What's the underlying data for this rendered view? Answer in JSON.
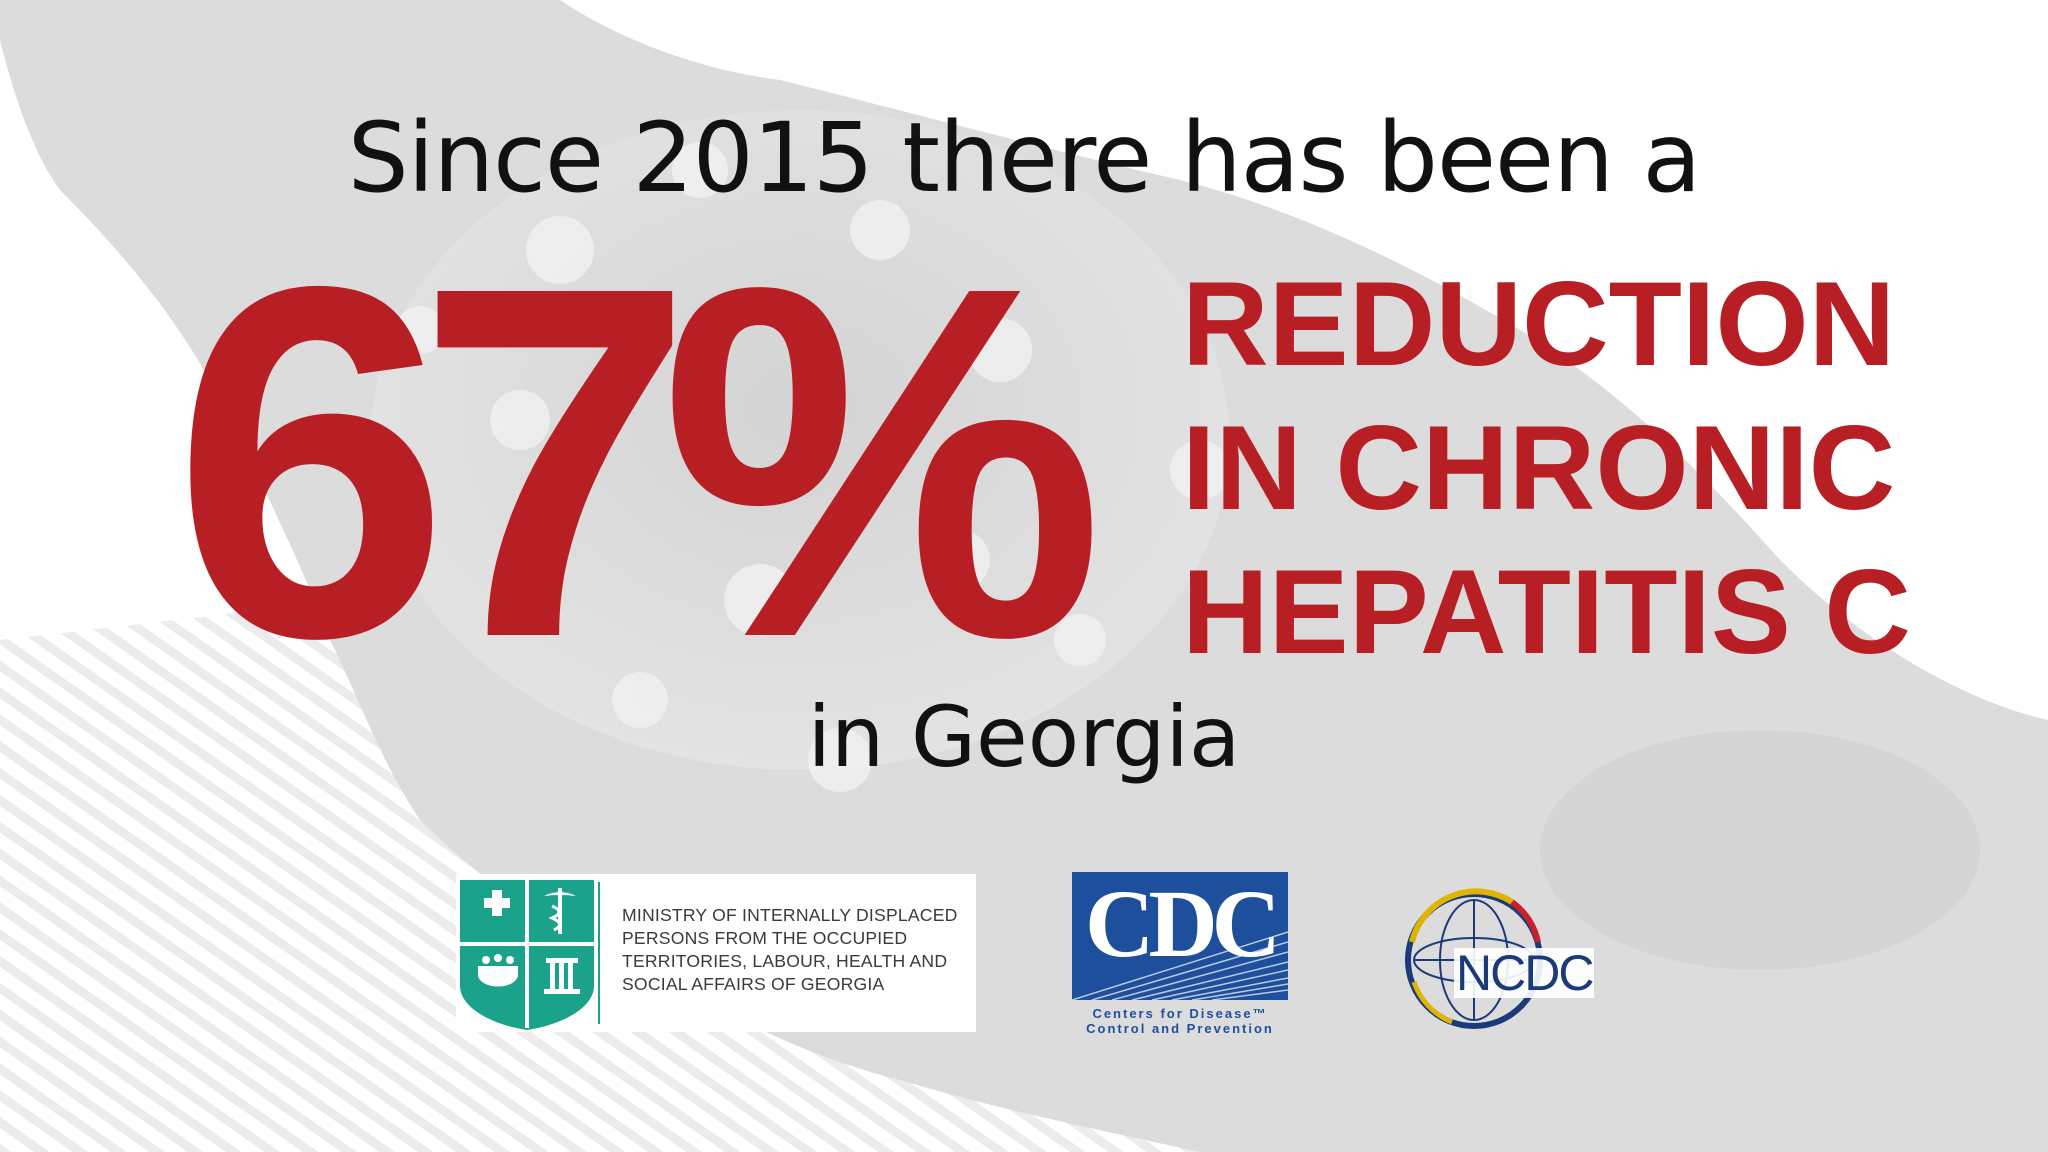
{
  "headline": "Since 2015 there has been a",
  "statistic": {
    "value": "67%",
    "description_lines": [
      "REDUCTION",
      "IN CHRONIC",
      "HEPATITIS C"
    ]
  },
  "location_line": "in Georgia",
  "logos": {
    "ministry": {
      "text_lines": [
        "MINISTRY OF INTERNALLY DISPLACED",
        "PERSONS FROM THE OCCUPIED",
        "TERRITORIES, LABOUR, HEALTH AND",
        "SOCIAL AFFAIRS OF GEORGIA"
      ]
    },
    "cdc": {
      "letters": "CDC",
      "caption_lines": [
        "Centers for Disease™",
        "Control and Prevention"
      ]
    },
    "ncdc": {
      "letters": "NCDC"
    }
  },
  "colors": {
    "accent_red": "#b81f25",
    "text_dark": "#111111",
    "cdc_blue": "#1d4f9c",
    "ministry_green": "#1aa28a"
  }
}
